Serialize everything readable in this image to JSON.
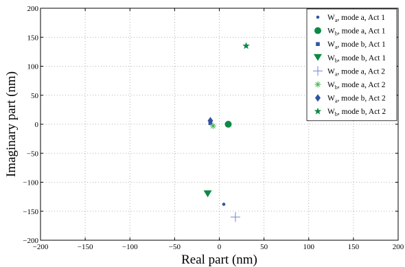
{
  "chart_data": {
    "type": "scatter",
    "xlabel": "Real part (nm)",
    "ylabel": "Imaginary part (nm)",
    "xlim": [
      -200,
      200
    ],
    "ylim": [
      -200,
      200
    ],
    "xticks": [
      -200,
      -150,
      -100,
      -50,
      0,
      50,
      100,
      150,
      200
    ],
    "yticks": [
      -200,
      -150,
      -100,
      -50,
      0,
      50,
      100,
      150,
      200
    ],
    "xtick_labels": [
      "−200",
      "−150",
      "−100",
      "−50",
      "0",
      "50",
      "100",
      "150",
      "200"
    ],
    "ytick_labels": [
      "−200",
      "−150",
      "−100",
      "−50",
      "0",
      "50",
      "100",
      "150",
      "200"
    ],
    "grid": true,
    "legend_position": "top-right",
    "colors": {
      "blue": "#3153a4",
      "green": "#0b8a45",
      "lightblue": "#7a8fd0",
      "lightgreen": "#40b54a"
    },
    "series": [
      {
        "name": "W",
        "sub": "a",
        "suffix": ", mode a, Act 1",
        "marker": "dot",
        "color": "#3153a4",
        "x": [
          5
        ],
        "y": [
          -138
        ]
      },
      {
        "name": "W",
        "sub": "b",
        "suffix": ", mode a, Act 1",
        "marker": "circle",
        "color": "#0b8a45",
        "x": [
          10
        ],
        "y": [
          0
        ]
      },
      {
        "name": "W",
        "sub": "a",
        "suffix": ", mode b, Act 1",
        "marker": "square",
        "color": "#3153a4",
        "x": [
          -10
        ],
        "y": [
          2
        ]
      },
      {
        "name": "W",
        "sub": "b",
        "suffix": ", mode b, Act 1",
        "marker": "triangle-down",
        "color": "#0b8a45",
        "x": [
          -13
        ],
        "y": [
          -120
        ]
      },
      {
        "name": "W",
        "sub": "a",
        "suffix": ", mode a, Act 2",
        "marker": "plus",
        "color": "#7a8fd0",
        "x": [
          18
        ],
        "y": [
          -160
        ]
      },
      {
        "name": "W",
        "sub": "b",
        "suffix": ", mode a, Act 2",
        "marker": "asterisk",
        "color": "#40b54a",
        "x": [
          -7
        ],
        "y": [
          -3
        ]
      },
      {
        "name": "W",
        "sub": "a",
        "suffix": ", mode b, Act 2",
        "marker": "diamond",
        "color": "#3153a4",
        "x": [
          -10
        ],
        "y": [
          6
        ]
      },
      {
        "name": "W",
        "sub": "b",
        "suffix": ", mode b, Act 2",
        "marker": "star",
        "color": "#0b8a45",
        "x": [
          30
        ],
        "y": [
          135
        ]
      }
    ]
  }
}
